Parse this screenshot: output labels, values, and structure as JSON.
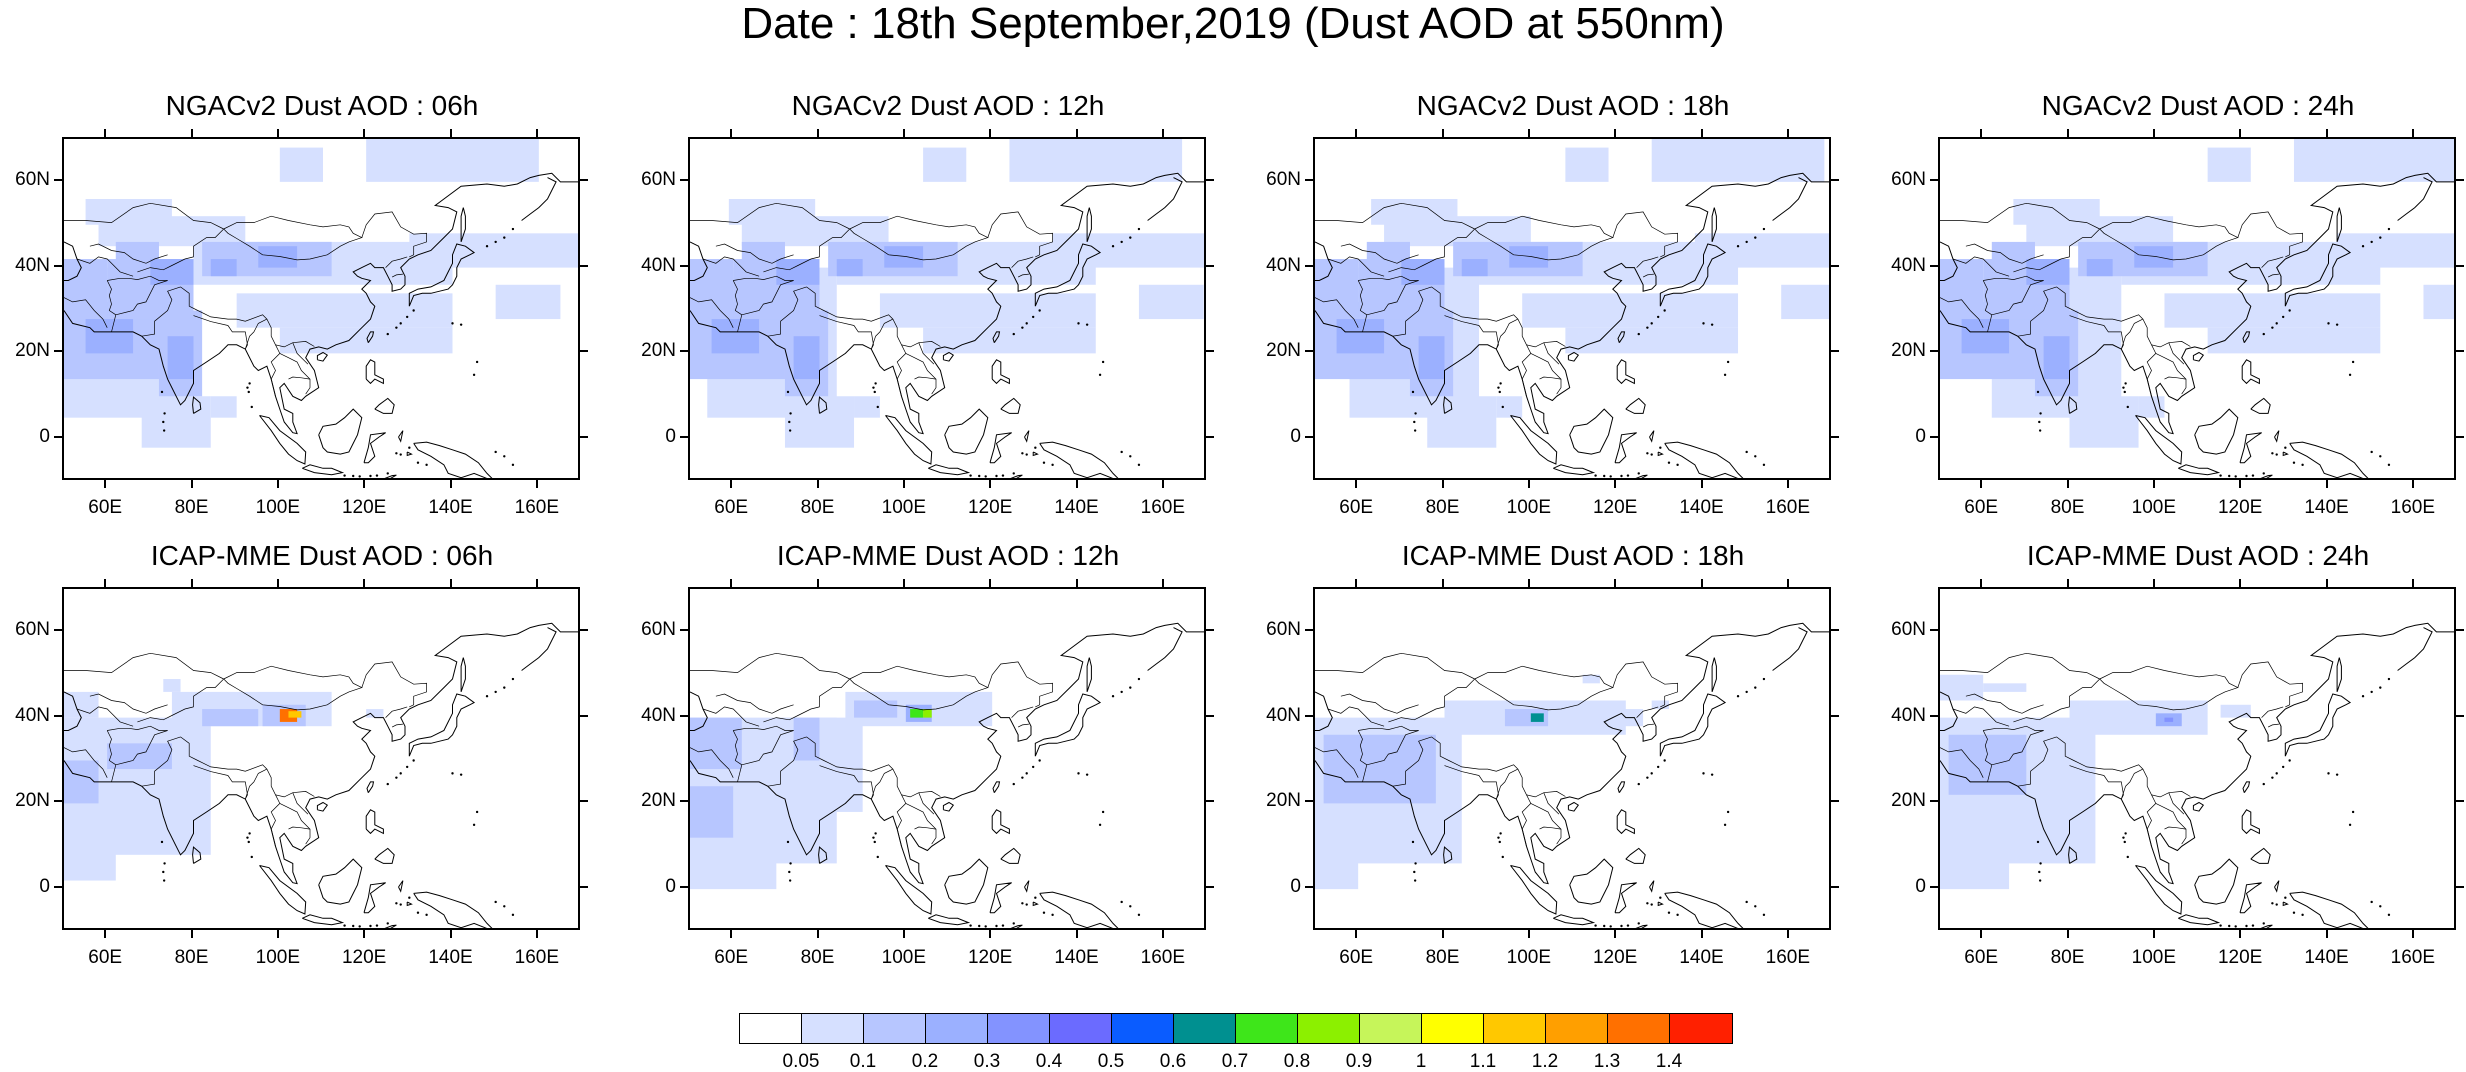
{
  "title": "Date : 18th September,2019 (Dust AOD at 550nm)",
  "lat_ticks": [
    "60N",
    "40N",
    "20N",
    "0"
  ],
  "lon_ticks": [
    "60E",
    "80E",
    "100E",
    "120E",
    "140E",
    "160E"
  ],
  "panels": [
    {
      "title": "NGACv2 Dust AOD : 06h"
    },
    {
      "title": "NGACv2 Dust AOD : 12h"
    },
    {
      "title": "NGACv2 Dust AOD : 18h"
    },
    {
      "title": "NGACv2 Dust AOD : 24h"
    },
    {
      "title": "ICAP-MME Dust AOD : 06h"
    },
    {
      "title": "ICAP-MME Dust AOD : 12h"
    },
    {
      "title": "ICAP-MME Dust AOD : 18h"
    },
    {
      "title": "ICAP-MME Dust AOD : 24h"
    }
  ],
  "colorbar": {
    "labels": [
      "0.05",
      "0.1",
      "0.2",
      "0.3",
      "0.4",
      "0.5",
      "0.6",
      "0.7",
      "0.8",
      "0.9",
      "1",
      "1.1",
      "1.2",
      "1.3",
      "1.4"
    ],
    "colors": [
      "#ffffff",
      "#d6e0ff",
      "#b7c6ff",
      "#9bb0ff",
      "#8393ff",
      "#6b6bff",
      "#0a5cff",
      "#009090",
      "#3ee61a",
      "#8cf000",
      "#c6f55a",
      "#ffff00",
      "#ffc800",
      "#ff9f00",
      "#ff7000",
      "#ff2000"
    ]
  }
}
